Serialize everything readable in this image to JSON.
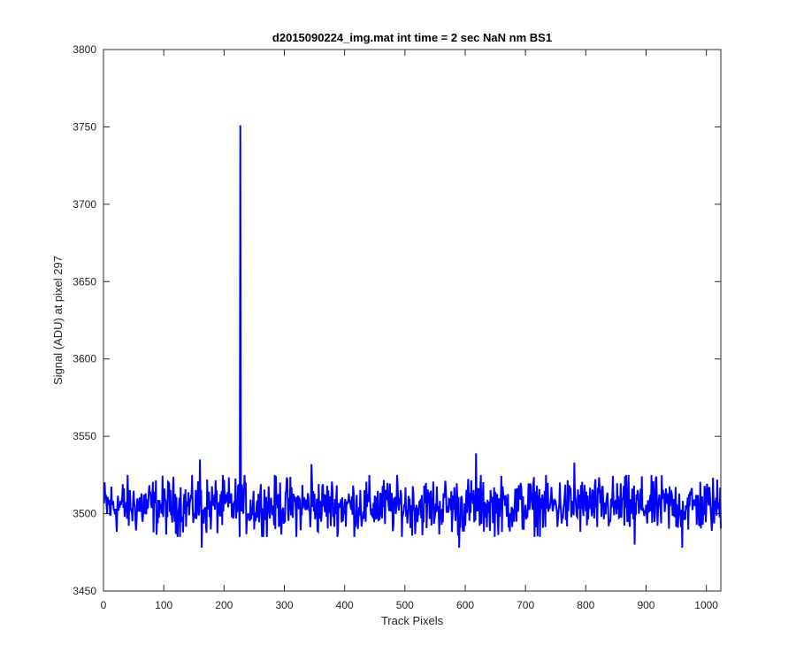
{
  "chart_data": {
    "type": "line",
    "title": "d2015090224_img.mat int time = 2 sec  NaN nm BS1",
    "xlabel": "Track Pixels",
    "ylabel": "Signal (ADU) at pixel 297",
    "xlim": [
      0,
      1024
    ],
    "ylim": [
      3450,
      3800
    ],
    "xticks": [
      0,
      100,
      200,
      300,
      400,
      500,
      600,
      700,
      800,
      900,
      1000
    ],
    "yticks": [
      3450,
      3500,
      3550,
      3600,
      3650,
      3700,
      3750,
      3800
    ],
    "grid": false,
    "series_color": "#0000ff",
    "series": [
      {
        "x_start": 1,
        "x_step": 1,
        "baseline": 3505,
        "noise_amplitude": 18,
        "spikes": [
          {
            "x": 227,
            "y": 3751
          },
          {
            "x": 160,
            "y": 3535
          },
          {
            "x": 163,
            "y": 3478
          },
          {
            "x": 345,
            "y": 3532
          },
          {
            "x": 618,
            "y": 3539
          },
          {
            "x": 590,
            "y": 3478
          },
          {
            "x": 781,
            "y": 3533
          },
          {
            "x": 881,
            "y": 3480
          },
          {
            "x": 960,
            "y": 3478
          }
        ]
      }
    ]
  }
}
